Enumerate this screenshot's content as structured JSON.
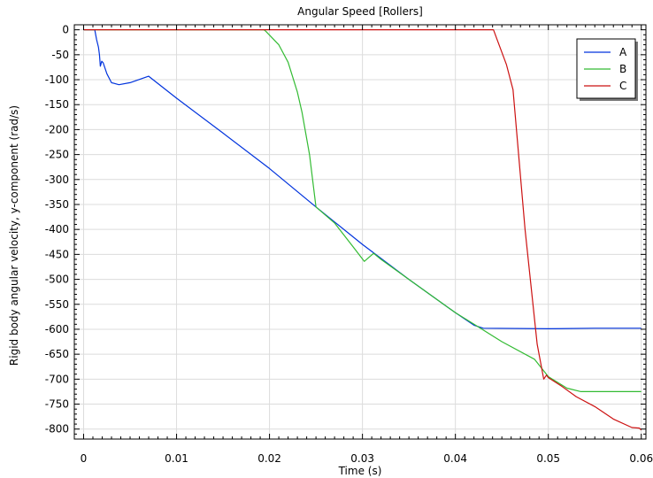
{
  "chart_data": {
    "type": "line",
    "title": "Angular Speed [Rollers]",
    "xlabel": "Time (s)",
    "ylabel": "Rigid body angular velocity, y-component (rad/s)",
    "xlim": [
      -0.001,
      0.0605
    ],
    "ylim": [
      -820,
      10
    ],
    "x_ticks": [
      0,
      0.01,
      0.02,
      0.03,
      0.04,
      0.05,
      0.06
    ],
    "x_tick_labels": [
      "0",
      "0.01",
      "0.02",
      "0.03",
      "0.04",
      "0.05",
      "0.06"
    ],
    "y_ticks": [
      0,
      -50,
      -100,
      -150,
      -200,
      -250,
      -300,
      -350,
      -400,
      -450,
      -500,
      -550,
      -600,
      -650,
      -700,
      -750,
      -800
    ],
    "y_tick_labels": [
      "0",
      "-50",
      "-100",
      "-150",
      "-200",
      "-250",
      "-300",
      "-350",
      "-400",
      "-450",
      "-500",
      "-550",
      "-600",
      "-650",
      "-700",
      "-750",
      "-800"
    ],
    "grid": true,
    "legend_position": "top-right",
    "series": [
      {
        "name": "A",
        "color": "#0033dd",
        "points": [
          [
            0,
            0
          ],
          [
            0.0012,
            0
          ],
          [
            0.0014,
            -20
          ],
          [
            0.0016,
            -35
          ],
          [
            0.0017,
            -50
          ],
          [
            0.0018,
            -73
          ],
          [
            0.00195,
            -63
          ],
          [
            0.0021,
            -66
          ],
          [
            0.0025,
            -88
          ],
          [
            0.003,
            -106
          ],
          [
            0.0038,
            -110
          ],
          [
            0.005,
            -106
          ],
          [
            0.007,
            -93
          ],
          [
            0.01,
            -137
          ],
          [
            0.015,
            -207
          ],
          [
            0.02,
            -278
          ],
          [
            0.025,
            -355
          ],
          [
            0.03,
            -430
          ],
          [
            0.035,
            -500
          ],
          [
            0.04,
            -567
          ],
          [
            0.042,
            -592
          ],
          [
            0.043,
            -598
          ],
          [
            0.05,
            -599
          ],
          [
            0.055,
            -598
          ],
          [
            0.06,
            -598
          ]
        ]
      },
      {
        "name": "B",
        "color": "#33bb33",
        "points": [
          [
            0,
            0
          ],
          [
            0.0194,
            0
          ],
          [
            0.0196,
            -3
          ],
          [
            0.021,
            -30
          ],
          [
            0.022,
            -65
          ],
          [
            0.023,
            -125
          ],
          [
            0.0235,
            -165
          ],
          [
            0.0243,
            -250
          ],
          [
            0.025,
            -355
          ],
          [
            0.027,
            -387
          ],
          [
            0.029,
            -435
          ],
          [
            0.0302,
            -464
          ],
          [
            0.0312,
            -448
          ],
          [
            0.032,
            -460
          ],
          [
            0.035,
            -500
          ],
          [
            0.04,
            -567
          ],
          [
            0.042,
            -590
          ],
          [
            0.045,
            -625
          ],
          [
            0.0485,
            -660
          ],
          [
            0.05,
            -695
          ],
          [
            0.052,
            -718
          ],
          [
            0.0535,
            -725
          ],
          [
            0.06,
            -725
          ]
        ]
      },
      {
        "name": "C",
        "color": "#cc1111",
        "points": [
          [
            0,
            0
          ],
          [
            0.0441,
            0
          ],
          [
            0.0445,
            -20
          ],
          [
            0.0455,
            -70
          ],
          [
            0.0462,
            -120
          ],
          [
            0.0475,
            -400
          ],
          [
            0.0488,
            -630
          ],
          [
            0.0495,
            -700
          ],
          [
            0.0498,
            -692
          ],
          [
            0.05,
            -697
          ],
          [
            0.0515,
            -715
          ],
          [
            0.053,
            -735
          ],
          [
            0.055,
            -755
          ],
          [
            0.057,
            -780
          ],
          [
            0.059,
            -797
          ],
          [
            0.0598,
            -798
          ],
          [
            0.06,
            -802
          ]
        ]
      }
    ]
  }
}
